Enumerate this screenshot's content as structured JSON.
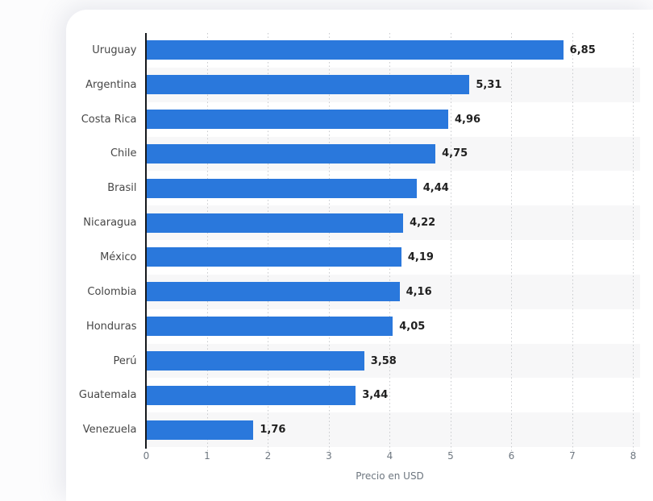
{
  "page": {
    "background": "#fcfcfd",
    "card_background": "#ffffff"
  },
  "chart_data": {
    "type": "bar",
    "orientation": "horizontal",
    "title": "",
    "xlabel": "Precio en USD",
    "ylabel": "",
    "xlim": [
      0,
      8
    ],
    "x_ticks": [
      0,
      1,
      2,
      3,
      4,
      5,
      6,
      7,
      8
    ],
    "grid": "dotted-vertical",
    "legend": "none",
    "categories": [
      "Uruguay",
      "Argentina",
      "Costa Rica",
      "Chile",
      "Brasil",
      "Nicaragua",
      "México",
      "Colombia",
      "Honduras",
      "Perú",
      "Guatemala",
      "Venezuela"
    ],
    "values": [
      6.85,
      5.31,
      4.96,
      4.75,
      4.44,
      4.22,
      4.19,
      4.16,
      4.05,
      3.58,
      3.44,
      1.76
    ],
    "value_labels": [
      "6,85",
      "5,31",
      "4,96",
      "4,75",
      "4,44",
      "4,22",
      "4,19",
      "4,16",
      "4,05",
      "3,58",
      "3,44",
      "1,76"
    ],
    "bar_color": "#2a78dc",
    "stripe_color": "#f7f7f8",
    "axis_line_color": "#15181c",
    "gridline_color": "#c7c9cc"
  }
}
